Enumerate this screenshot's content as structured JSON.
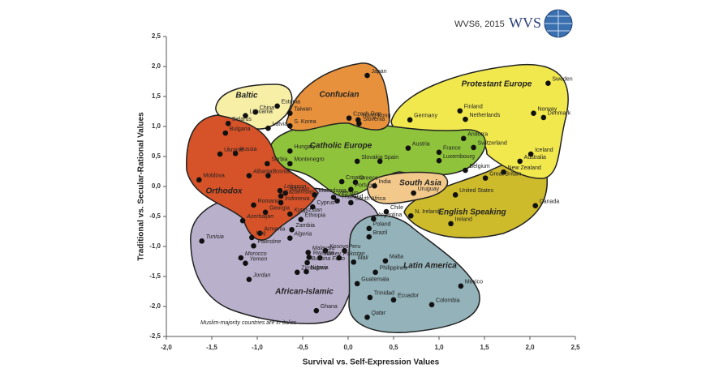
{
  "chart_data": {
    "type": "scatter",
    "header": "WVS6, 2015",
    "logo": "WVS",
    "x_label": "Survival vs. Self-Expression Values",
    "y_label": "Traditional vs. Secular-Rational Values",
    "note": "Muslim-majority countries are in italics",
    "xlim": [
      -2.0,
      2.5
    ],
    "ylim": [
      -2.5,
      2.5
    ],
    "xticks": [
      {
        "value": -2.0,
        "label": "-2,0"
      },
      {
        "value": -1.5,
        "label": "-1,5"
      },
      {
        "value": -1.0,
        "label": "-1,0"
      },
      {
        "value": -0.5,
        "label": "-0,5"
      },
      {
        "value": 0.0,
        "label": "0,0"
      },
      {
        "value": 0.5,
        "label": "0,5"
      },
      {
        "value": 1.0,
        "label": "1,0"
      },
      {
        "value": 1.5,
        "label": "1,5"
      },
      {
        "value": 2.0,
        "label": "2,0"
      },
      {
        "value": 2.5,
        "label": "2,5"
      }
    ],
    "yticks": [
      {
        "value": -2.5,
        "label": "-2,5"
      },
      {
        "value": -2.0,
        "label": "-2,0"
      },
      {
        "value": -1.5,
        "label": "-1,5"
      },
      {
        "value": -1.0,
        "label": "-1,0"
      },
      {
        "value": -0.5,
        "label": "-0,5"
      },
      {
        "value": 0.0,
        "label": "0,0"
      },
      {
        "value": 0.5,
        "label": "0,5"
      },
      {
        "value": 1.0,
        "label": "1,0"
      },
      {
        "value": 1.5,
        "label": "1,5"
      },
      {
        "value": 2.0,
        "label": "2,0"
      },
      {
        "value": 2.5,
        "label": "2,5"
      }
    ],
    "zones": [
      {
        "name": "African-Islamic",
        "color": "#b9b0cc"
      },
      {
        "name": "Latin America",
        "color": "#93b2b9"
      },
      {
        "name": "English Speaking",
        "color": "#cdbb2c"
      },
      {
        "name": "Protestant Europe",
        "color": "#f1e84e"
      },
      {
        "name": "Catholic Europe",
        "color": "#8fc33b"
      },
      {
        "name": "Confucian",
        "color": "#e8913c"
      },
      {
        "name": "Baltic",
        "color": "#f7efa6"
      },
      {
        "name": "Orthodox",
        "color": "#d65228"
      },
      {
        "name": "South Asia",
        "color": "#f3c98b"
      }
    ],
    "points": [
      {
        "label": "Japan",
        "x": 0.21,
        "y": 1.85,
        "muslim_majority": false
      },
      {
        "label": "Sweden",
        "x": 2.2,
        "y": 1.72,
        "muslim_majority": false
      },
      {
        "label": "Estonia",
        "x": -0.78,
        "y": 1.34,
        "muslim_majority": false
      },
      {
        "label": "Lithuania",
        "x": -1.13,
        "y": 1.18,
        "muslim_majority": false
      },
      {
        "label": "China",
        "x": -1.02,
        "y": 1.24,
        "muslim_majority": false
      },
      {
        "label": "Taiwan",
        "x": -0.64,
        "y": 1.22,
        "muslim_majority": false
      },
      {
        "label": "S. Korea",
        "x": -0.64,
        "y": 1.01,
        "muslim_majority": false
      },
      {
        "label": "Hong Kong",
        "x": 0.11,
        "y": 1.11,
        "muslim_majority": false
      },
      {
        "label": "Czech Rep",
        "x": 0.01,
        "y": 1.14,
        "muslim_majority": false
      },
      {
        "label": "Slovenia",
        "x": 0.12,
        "y": 1.05,
        "muslim_majority": false
      },
      {
        "label": "Finland",
        "x": 1.23,
        "y": 1.26,
        "muslim_majority": false
      },
      {
        "label": "Netherlands",
        "x": 1.29,
        "y": 1.12,
        "muslim_majority": false
      },
      {
        "label": "Norway",
        "x": 2.04,
        "y": 1.22,
        "muslim_majority": false
      },
      {
        "label": "Denmark",
        "x": 2.15,
        "y": 1.15,
        "muslim_majority": false
      },
      {
        "label": "Germany",
        "x": 0.68,
        "y": 1.11,
        "muslim_majority": false
      },
      {
        "label": "Belarus",
        "x": -1.32,
        "y": 1.05,
        "muslim_majority": false
      },
      {
        "label": "Bulgaria",
        "x": -1.35,
        "y": 0.89,
        "muslim_majority": false
      },
      {
        "label": "Latvia",
        "x": -0.88,
        "y": 0.97,
        "muslim_majority": false
      },
      {
        "label": "Ukraine",
        "x": -1.41,
        "y": 0.54,
        "muslim_majority": false
      },
      {
        "label": "Russia",
        "x": -1.24,
        "y": 0.55,
        "muslim_majority": false
      },
      {
        "label": "Hungary",
        "x": -0.64,
        "y": 0.59,
        "muslim_majority": false
      },
      {
        "label": "Austria",
        "x": 0.66,
        "y": 0.64,
        "muslim_majority": false
      },
      {
        "label": "France",
        "x": 1.0,
        "y": 0.57,
        "muslim_majority": false
      },
      {
        "label": "Andorra",
        "x": 1.27,
        "y": 0.8,
        "muslim_majority": false
      },
      {
        "label": "Switzerland",
        "x": 1.38,
        "y": 0.65,
        "muslim_majority": false
      },
      {
        "label": "Iceland",
        "x": 2.01,
        "y": 0.54,
        "muslim_majority": false
      },
      {
        "label": "Luxembourg",
        "x": 1.0,
        "y": 0.43,
        "muslim_majority": false
      },
      {
        "label": "Australia",
        "x": 1.89,
        "y": 0.42,
        "muslim_majority": false
      },
      {
        "label": "Serbia",
        "x": -0.89,
        "y": 0.38,
        "muslim_majority": false
      },
      {
        "label": "Montenegro",
        "x": -0.64,
        "y": 0.38,
        "muslim_majority": false
      },
      {
        "label": "Slovakia",
        "x": 0.1,
        "y": 0.42,
        "muslim_majority": false
      },
      {
        "label": "Spain",
        "x": 0.35,
        "y": 0.42,
        "muslim_majority": false
      },
      {
        "label": "Belgium",
        "x": 1.29,
        "y": 0.27,
        "muslim_majority": false
      },
      {
        "label": "New Zealand",
        "x": 1.71,
        "y": 0.24,
        "muslim_majority": false
      },
      {
        "label": "Moldova",
        "x": -1.64,
        "y": 0.11,
        "muslim_majority": false
      },
      {
        "label": "Albania",
        "x": -1.09,
        "y": 0.18,
        "muslim_majority": true
      },
      {
        "label": "Bosnia",
        "x": -0.88,
        "y": 0.18,
        "muslim_majority": true
      },
      {
        "label": "Croatia",
        "x": -0.07,
        "y": 0.08,
        "muslim_majority": false
      },
      {
        "label": "Greece",
        "x": 0.08,
        "y": 0.07,
        "muslim_majority": false
      },
      {
        "label": "Portugal",
        "x": 0.03,
        "y": -0.05,
        "muslim_majority": false
      },
      {
        "label": "Great Britain",
        "x": 1.51,
        "y": 0.14,
        "muslim_majority": false
      },
      {
        "label": "Lebanon",
        "x": -0.75,
        "y": -0.07,
        "muslim_majority": true
      },
      {
        "label": "Bahrain",
        "x": -0.69,
        "y": -0.11,
        "muslim_majority": true
      },
      {
        "label": "Macedonia",
        "x": -0.37,
        "y": -0.14,
        "muslim_majority": false
      },
      {
        "label": "Kazakhstan",
        "x": -0.74,
        "y": -0.16,
        "muslim_majority": true
      },
      {
        "label": "India",
        "x": 0.29,
        "y": 0.01,
        "muslim_majority": false
      },
      {
        "label": "Uruguay",
        "x": 0.72,
        "y": -0.11,
        "muslim_majority": false
      },
      {
        "label": "United States",
        "x": 1.18,
        "y": -0.14,
        "muslim_majority": false
      },
      {
        "label": "Romania",
        "x": -1.04,
        "y": -0.31,
        "muslim_majority": false
      },
      {
        "label": "Vietnam",
        "x": -0.16,
        "y": -0.18,
        "muslim_majority": false
      },
      {
        "label": "Thailand",
        "x": -0.12,
        "y": -0.24,
        "muslim_majority": false
      },
      {
        "label": "Indonesia",
        "x": -0.74,
        "y": -0.27,
        "muslim_majority": true
      },
      {
        "label": "Georgia",
        "x": -0.91,
        "y": -0.43,
        "muslim_majority": false
      },
      {
        "label": "Azerbaijan",
        "x": -1.16,
        "y": -0.57,
        "muslim_majority": true
      },
      {
        "label": "Kyrgyzstan",
        "x": -0.64,
        "y": -0.46,
        "muslim_majority": true
      },
      {
        "label": "Cyprus",
        "x": -0.39,
        "y": -0.34,
        "muslim_majority": false
      },
      {
        "label": "South Africa",
        "x": 0.03,
        "y": -0.27,
        "muslim_majority": false
      },
      {
        "label": "Chile",
        "x": 0.42,
        "y": -0.42,
        "muslim_majority": false
      },
      {
        "label": "Argentina",
        "x": 0.28,
        "y": -0.54,
        "muslim_majority": false
      },
      {
        "label": "Poland",
        "x": 0.23,
        "y": -0.7,
        "muslim_majority": false
      },
      {
        "label": "N. Ireland",
        "x": 0.69,
        "y": -0.49,
        "muslim_majority": false
      },
      {
        "label": "Ireland",
        "x": 1.13,
        "y": -0.62,
        "muslim_majority": false
      },
      {
        "label": "Canada",
        "x": 2.06,
        "y": -0.32,
        "muslim_majority": false
      },
      {
        "label": "Armenia",
        "x": -0.97,
        "y": -0.78,
        "muslim_majority": false
      },
      {
        "label": "Ethiopia",
        "x": -0.52,
        "y": -0.55,
        "muslim_majority": false
      },
      {
        "label": "Zambia",
        "x": -0.62,
        "y": -0.72,
        "muslim_majority": false
      },
      {
        "label": "Algeria",
        "x": -0.64,
        "y": -0.86,
        "muslim_majority": true
      },
      {
        "label": "Tunisia",
        "x": -1.61,
        "y": -0.91,
        "muslim_majority": true
      },
      {
        "label": "Iraq",
        "x": -1.06,
        "y": -0.85,
        "muslim_majority": true
      },
      {
        "label": "Brazil",
        "x": 0.23,
        "y": -0.84,
        "muslim_majority": false
      },
      {
        "label": "Palestine",
        "x": -1.04,
        "y": -0.99,
        "muslim_majority": true
      },
      {
        "label": "Kosovo",
        "x": -0.25,
        "y": -1.07,
        "muslim_majority": true
      },
      {
        "label": "Peru",
        "x": -0.04,
        "y": -1.07,
        "muslim_majority": false
      },
      {
        "label": "Morocco",
        "x": -1.18,
        "y": -1.19,
        "muslim_majority": true
      },
      {
        "label": "Malaysia",
        "x": -0.44,
        "y": -1.1,
        "muslim_majority": true
      },
      {
        "label": "Rwanda",
        "x": -0.43,
        "y": -1.18,
        "muslim_majority": false
      },
      {
        "label": "Turkey",
        "x": -0.31,
        "y": -1.19,
        "muslim_majority": true
      },
      {
        "label": "Burkina Faso",
        "x": -0.45,
        "y": -1.27,
        "muslim_majority": true
      },
      {
        "label": "Pakistan",
        "x": -0.1,
        "y": -1.19,
        "muslim_majority": true
      },
      {
        "label": "Mali",
        "x": 0.06,
        "y": -1.26,
        "muslim_majority": true
      },
      {
        "label": "Yemen",
        "x": -1.13,
        "y": -1.28,
        "muslim_majority": true
      },
      {
        "label": "Malta",
        "x": 0.41,
        "y": -1.24,
        "muslim_majority": false
      },
      {
        "label": "Philippines",
        "x": 0.3,
        "y": -1.43,
        "muslim_majority": false
      },
      {
        "label": "Nigeria",
        "x": -0.46,
        "y": -1.42,
        "muslim_majority": false
      },
      {
        "label": "Zimbabwe",
        "x": -0.56,
        "y": -1.43,
        "muslim_majority": false
      },
      {
        "label": "Jordan",
        "x": -1.09,
        "y": -1.55,
        "muslim_majority": true
      },
      {
        "label": "Guatemala",
        "x": 0.1,
        "y": -1.62,
        "muslim_majority": false
      },
      {
        "label": "Mexico",
        "x": 1.24,
        "y": -1.66,
        "muslim_majority": false
      },
      {
        "label": "Trinidad",
        "x": 0.24,
        "y": -1.85,
        "muslim_majority": false
      },
      {
        "label": "Ecuador",
        "x": 0.5,
        "y": -1.89,
        "muslim_majority": false
      },
      {
        "label": "Colombia",
        "x": 0.92,
        "y": -1.97,
        "muslim_majority": false
      },
      {
        "label": "Ghana",
        "x": -0.35,
        "y": -2.07,
        "muslim_majority": false
      },
      {
        "label": "Qatar",
        "x": 0.21,
        "y": -2.18,
        "muslim_majority": true
      }
    ]
  }
}
